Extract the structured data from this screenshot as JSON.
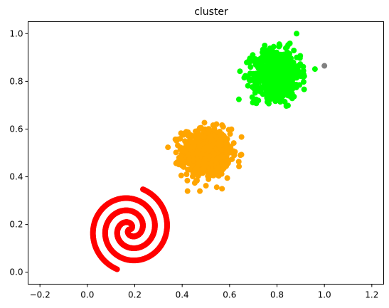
{
  "chart_data": {
    "type": "scatter",
    "title": "cluster",
    "xlabel": "",
    "ylabel": "",
    "xlim": [
      -0.25,
      1.25
    ],
    "ylim": [
      -0.05,
      1.05
    ],
    "grid": false,
    "x_ticks": [
      -0.2,
      0.0,
      0.2,
      0.4,
      0.6,
      0.8,
      1.0,
      1.2
    ],
    "x_tick_labels": [
      "−0.2",
      "0.0",
      "0.2",
      "0.4",
      "0.6",
      "0.8",
      "1.0",
      "1.2"
    ],
    "y_ticks": [
      0.0,
      0.2,
      0.4,
      0.6,
      0.8,
      1.0
    ],
    "y_tick_labels": [
      "0.0",
      "0.2",
      "0.4",
      "0.6",
      "0.8",
      "1.0"
    ],
    "series": [
      {
        "shape": "spiral",
        "color": "#ff0000",
        "point_count": 1000,
        "center": [
          0.18,
          0.18
        ],
        "x_range": [
          0.0,
          0.38
        ],
        "y_range": [
          0.0,
          0.35
        ]
      },
      {
        "shape": "gaussian-cluster",
        "color": "#ffa500",
        "point_count": 700,
        "center": [
          0.5,
          0.5
        ],
        "std": [
          0.05,
          0.05
        ],
        "x_range": [
          0.34,
          0.68
        ],
        "y_range": [
          0.34,
          0.7
        ]
      },
      {
        "shape": "gaussian-cluster",
        "color": "#00ff00",
        "point_count": 700,
        "center": [
          0.8,
          0.83
        ],
        "std": [
          0.05,
          0.05
        ],
        "x_range": [
          0.62,
          0.98
        ],
        "y_range": [
          0.66,
          1.0
        ]
      },
      {
        "shape": "outlier",
        "color": "#808080",
        "points": [
          [
            1.0,
            0.865
          ]
        ]
      }
    ]
  }
}
